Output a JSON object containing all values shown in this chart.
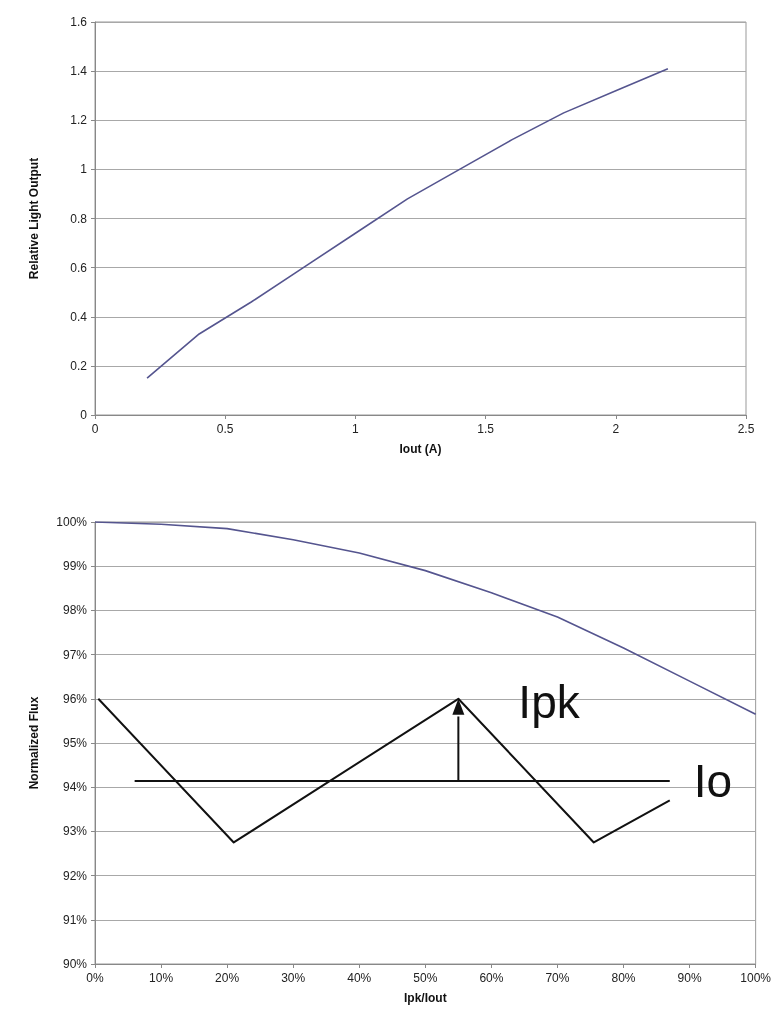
{
  "chart_data": [
    {
      "type": "line",
      "xlabel": "Iout (A)",
      "ylabel": "Relative Light Output",
      "series": [
        {
          "color": "#55558f",
          "x": [
            0.2,
            0.4,
            0.6,
            0.8,
            1.0,
            1.2,
            1.4,
            1.6,
            1.8,
            2.0,
            2.2
          ],
          "values": [
            0.15,
            0.33,
            0.46,
            0.6,
            0.74,
            0.88,
            1.0,
            1.12,
            1.23,
            1.32,
            1.41
          ]
        }
      ],
      "xlim": [
        0,
        2.5
      ],
      "xticks": [
        0,
        0.5,
        1,
        1.5,
        2,
        2.5
      ],
      "ylim": [
        0,
        1.6
      ],
      "yticks": [
        0,
        0.2,
        0.4,
        0.6,
        0.8,
        1,
        1.2,
        1.4,
        1.6
      ],
      "grid": "y",
      "marker": "none",
      "line_style": "solid"
    },
    {
      "type": "line",
      "xlabel": "Ipk/Iout",
      "ylabel": "Normalized Flux",
      "annotations": [
        {
          "text": "Ipk",
          "x": 55,
          "y": 94.15
        }
      ],
      "ref_lines": [
        {
          "axis": "y",
          "value": 94.15,
          "label": "Io",
          "color": "#111111"
        }
      ],
      "series": [
        {
          "color": "#55558f",
          "x": [
            0,
            10,
            20,
            30,
            40,
            50,
            60,
            70,
            80,
            90,
            100
          ],
          "values": [
            100,
            99.95,
            99.85,
            99.6,
            99.3,
            98.9,
            98.4,
            97.85,
            97.15,
            96.4,
            95.65
          ]
        }
      ],
      "xlim": [
        0,
        100
      ],
      "xticks": [
        {
          "value": 0,
          "label": "0%"
        },
        {
          "value": 10,
          "label": "10%"
        },
        {
          "value": 20,
          "label": "20%"
        },
        {
          "value": 30,
          "label": "30%"
        },
        {
          "value": 40,
          "label": "40%"
        },
        {
          "value": 50,
          "label": "50%"
        },
        {
          "value": 60,
          "label": "60%"
        },
        {
          "value": 70,
          "label": "70%"
        },
        {
          "value": 80,
          "label": "80%"
        },
        {
          "value": 90,
          "label": "90%"
        },
        {
          "value": 100,
          "label": "100%"
        }
      ],
      "ylim": [
        90,
        100
      ],
      "yticks": [
        {
          "value": 90,
          "label": "90%"
        },
        {
          "value": 91,
          "label": "91%"
        },
        {
          "value": 92,
          "label": "92%"
        },
        {
          "value": 93,
          "label": "93%"
        },
        {
          "value": 94,
          "label": "94%"
        },
        {
          "value": 95,
          "label": "95%"
        },
        {
          "value": 96,
          "label": "96%"
        },
        {
          "value": 97,
          "label": "97%"
        },
        {
          "value": 98,
          "label": "98%"
        },
        {
          "value": 99,
          "label": "99%"
        },
        {
          "value": 100,
          "label": "100%"
        }
      ],
      "grid": "y",
      "marker": "none",
      "line_style": "solid"
    }
  ]
}
